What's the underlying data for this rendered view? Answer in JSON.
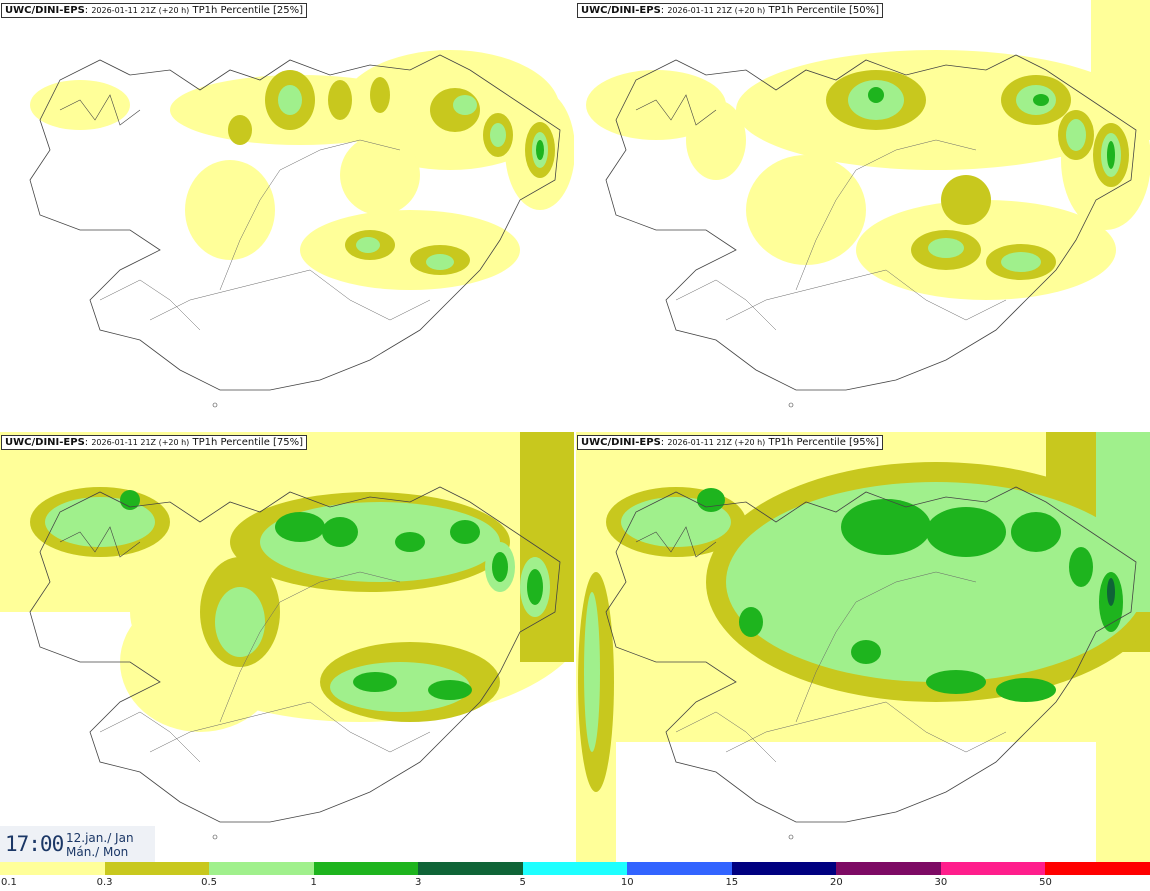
{
  "panels": [
    {
      "id": "p25",
      "source": "UWC/DINI-EPS",
      "run": "2026-01-11 21Z (+20 h)",
      "product": "TP1h Percentile [25%]"
    },
    {
      "id": "p50",
      "source": "UWC/DINI-EPS",
      "run": "2026-01-11 21Z (+20 h)",
      "product": "TP1h Percentile [50%]"
    },
    {
      "id": "p75",
      "source": "UWC/DINI-EPS",
      "run": "2026-01-11 21Z (+20 h)",
      "product": "TP1h Percentile [75%]"
    },
    {
      "id": "p95",
      "source": "UWC/DINI-EPS",
      "run": "2026-01-11 21Z (+20 h)",
      "product": "TP1h Percentile [95%]"
    }
  ],
  "valid_time": {
    "time": "17:00",
    "date_line1": "12.jan./ Jan",
    "date_line2": "Mán./ Mon"
  },
  "legend": {
    "labels": [
      "0.1",
      "0.3",
      "0.5",
      "1",
      "3",
      "5",
      "10",
      "15",
      "20",
      "30",
      "50"
    ],
    "colors": [
      "#ffff99",
      "#c8c81e",
      "#a0f08c",
      "#1eb41e",
      "#0f6437",
      "#1effff",
      "#3264ff",
      "#000080",
      "#7d0a64",
      "#ff1e8c",
      "#ff0000"
    ]
  },
  "colors": {
    "land": "#ffffff",
    "coast": "#444444",
    "road": "#666666",
    "time_text": "#1b3766"
  }
}
